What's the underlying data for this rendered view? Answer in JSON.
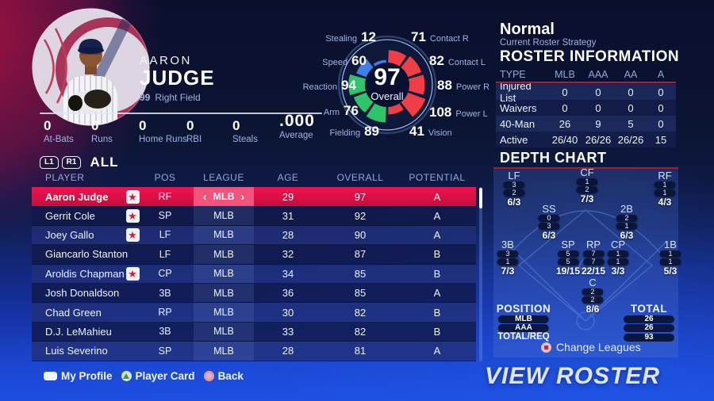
{
  "player": {
    "first_name": "AARON",
    "last_name": "JUDGE",
    "jersey_number": "99",
    "position": "Right Field",
    "stats": [
      {
        "value": "0",
        "label": "At-Bats"
      },
      {
        "value": "0",
        "label": "Runs"
      },
      {
        "value": "0",
        "label": "Home Runs"
      },
      {
        "value": "0",
        "label": "RBI"
      },
      {
        "value": "0",
        "label": "Steals"
      }
    ],
    "average_value": ".000",
    "average_label": "Average"
  },
  "wheel": {
    "overall_value": "97",
    "overall_label": "Overall",
    "attributes": [
      {
        "id": "stealing",
        "label": "Stealing",
        "value": 12,
        "group": "speed"
      },
      {
        "id": "speed",
        "label": "Speed",
        "value": 60,
        "group": "speed"
      },
      {
        "id": "reaction",
        "label": "Reaction",
        "value": 94,
        "group": "fielding"
      },
      {
        "id": "arm",
        "label": "Arm",
        "value": 76,
        "group": "fielding"
      },
      {
        "id": "fielding",
        "label": "Fielding",
        "value": 89,
        "group": "fielding"
      },
      {
        "id": "contact_r",
        "label": "Contact R",
        "value": 71,
        "group": "batting"
      },
      {
        "id": "contact_l",
        "label": "Contact L",
        "value": 82,
        "group": "batting"
      },
      {
        "id": "power_r",
        "label": "Power R",
        "value": 88,
        "group": "batting"
      },
      {
        "id": "power_l",
        "label": "Power L",
        "value": 108,
        "group": "batting"
      },
      {
        "id": "vision",
        "label": "Vision",
        "value": 41,
        "group": "batting"
      }
    ],
    "group_colors": {
      "speed": "#3e7ee6",
      "fielding": "#2ec56a",
      "batting": "#ef3e45"
    }
  },
  "strategy": {
    "value": "Normal",
    "label": "Current Roster Strategy"
  },
  "roster_information": {
    "title": "ROSTER INFORMATION",
    "columns": [
      "TYPE",
      "MLB",
      "AAA",
      "AA",
      "A"
    ],
    "rows": [
      {
        "type": "Injured List",
        "values": [
          "0",
          "0",
          "0",
          "0"
        ]
      },
      {
        "type": "Waivers",
        "values": [
          "0",
          "0",
          "0",
          "0"
        ]
      },
      {
        "type": "40-Man",
        "values": [
          "26",
          "9",
          "5",
          "0"
        ]
      },
      {
        "type": "Active",
        "values": [
          "26/40",
          "26/26",
          "26/26",
          "15"
        ]
      }
    ]
  },
  "depth_chart": {
    "title": "DEPTH CHART",
    "positions": [
      {
        "code": "LF",
        "slots": [
          "3",
          "2"
        ],
        "total": "6/3"
      },
      {
        "code": "CF",
        "slots": [
          "1",
          "2"
        ],
        "total": "7/3"
      },
      {
        "code": "RF",
        "slots": [
          "1",
          "1"
        ],
        "total": "4/3"
      },
      {
        "code": "SS",
        "slots": [
          "0",
          "3"
        ],
        "total": "6/3"
      },
      {
        "code": "2B",
        "slots": [
          "2",
          "1"
        ],
        "total": "6/3"
      },
      {
        "code": "3B",
        "slots": [
          "3",
          "1"
        ],
        "total": "7/3"
      },
      {
        "code": "SP",
        "slots": [
          "5",
          "5"
        ],
        "total": "19/15"
      },
      {
        "code": "RP",
        "slots": [
          "7",
          "7"
        ],
        "total": "22/15"
      },
      {
        "code": "CP",
        "slots": [
          "1",
          "1"
        ],
        "total": "3/3"
      },
      {
        "code": "1B",
        "slots": [
          "1",
          "1"
        ],
        "total": "5/3"
      },
      {
        "code": "C",
        "slots": [
          "2",
          "2"
        ],
        "total": "8/6"
      }
    ],
    "summary": {
      "position_label": "POSITION",
      "row_labels": [
        "MLB",
        "AAA",
        "TOTAL/REQ"
      ],
      "total_label": "TOTAL",
      "total_values": [
        "26",
        "26",
        "93"
      ]
    },
    "change_leagues_label": "Change Leagues"
  },
  "table": {
    "tabs": {
      "l1": "L1",
      "r1": "R1",
      "filter": "ALL"
    },
    "columns": [
      "PLAYER",
      "POS",
      "LEAGUE",
      "AGE",
      "OVERALL",
      "POTENTIAL"
    ],
    "rows": [
      {
        "player": "Aaron Judge",
        "starred": true,
        "pos": "RF",
        "league": "MLB",
        "age": "29",
        "overall": "97",
        "potential": "A",
        "selected": true
      },
      {
        "player": "Gerrit Cole",
        "starred": true,
        "pos": "SP",
        "league": "MLB",
        "age": "31",
        "overall": "92",
        "potential": "A",
        "selected": false
      },
      {
        "player": "Joey Gallo",
        "starred": true,
        "pos": "LF",
        "league": "MLB",
        "age": "28",
        "overall": "90",
        "potential": "A",
        "selected": false
      },
      {
        "player": "Giancarlo Stanton",
        "starred": false,
        "pos": "LF",
        "league": "MLB",
        "age": "32",
        "overall": "87",
        "potential": "B",
        "selected": false
      },
      {
        "player": "Aroldis Chapman",
        "starred": true,
        "pos": "CP",
        "league": "MLB",
        "age": "34",
        "overall": "85",
        "potential": "B",
        "selected": false
      },
      {
        "player": "Josh Donaldson",
        "starred": false,
        "pos": "3B",
        "league": "MLB",
        "age": "36",
        "overall": "85",
        "potential": "A",
        "selected": false
      },
      {
        "player": "Chad Green",
        "starred": false,
        "pos": "RP",
        "league": "MLB",
        "age": "30",
        "overall": "82",
        "potential": "B",
        "selected": false
      },
      {
        "player": "D.J. LeMahieu",
        "starred": false,
        "pos": "3B",
        "league": "MLB",
        "age": "33",
        "overall": "82",
        "potential": "B",
        "selected": false
      },
      {
        "player": "Luis Severino",
        "starred": false,
        "pos": "SP",
        "league": "MLB",
        "age": "28",
        "overall": "81",
        "potential": "A",
        "selected": false
      }
    ]
  },
  "footer": {
    "hints": [
      {
        "icon": "touchpad-button-icon",
        "label": "My Profile"
      },
      {
        "icon": "triangle-button-icon",
        "label": "Player Card"
      },
      {
        "icon": "circle-button-icon",
        "label": "Back"
      }
    ],
    "view_roster": "VIEW ROSTER"
  }
}
